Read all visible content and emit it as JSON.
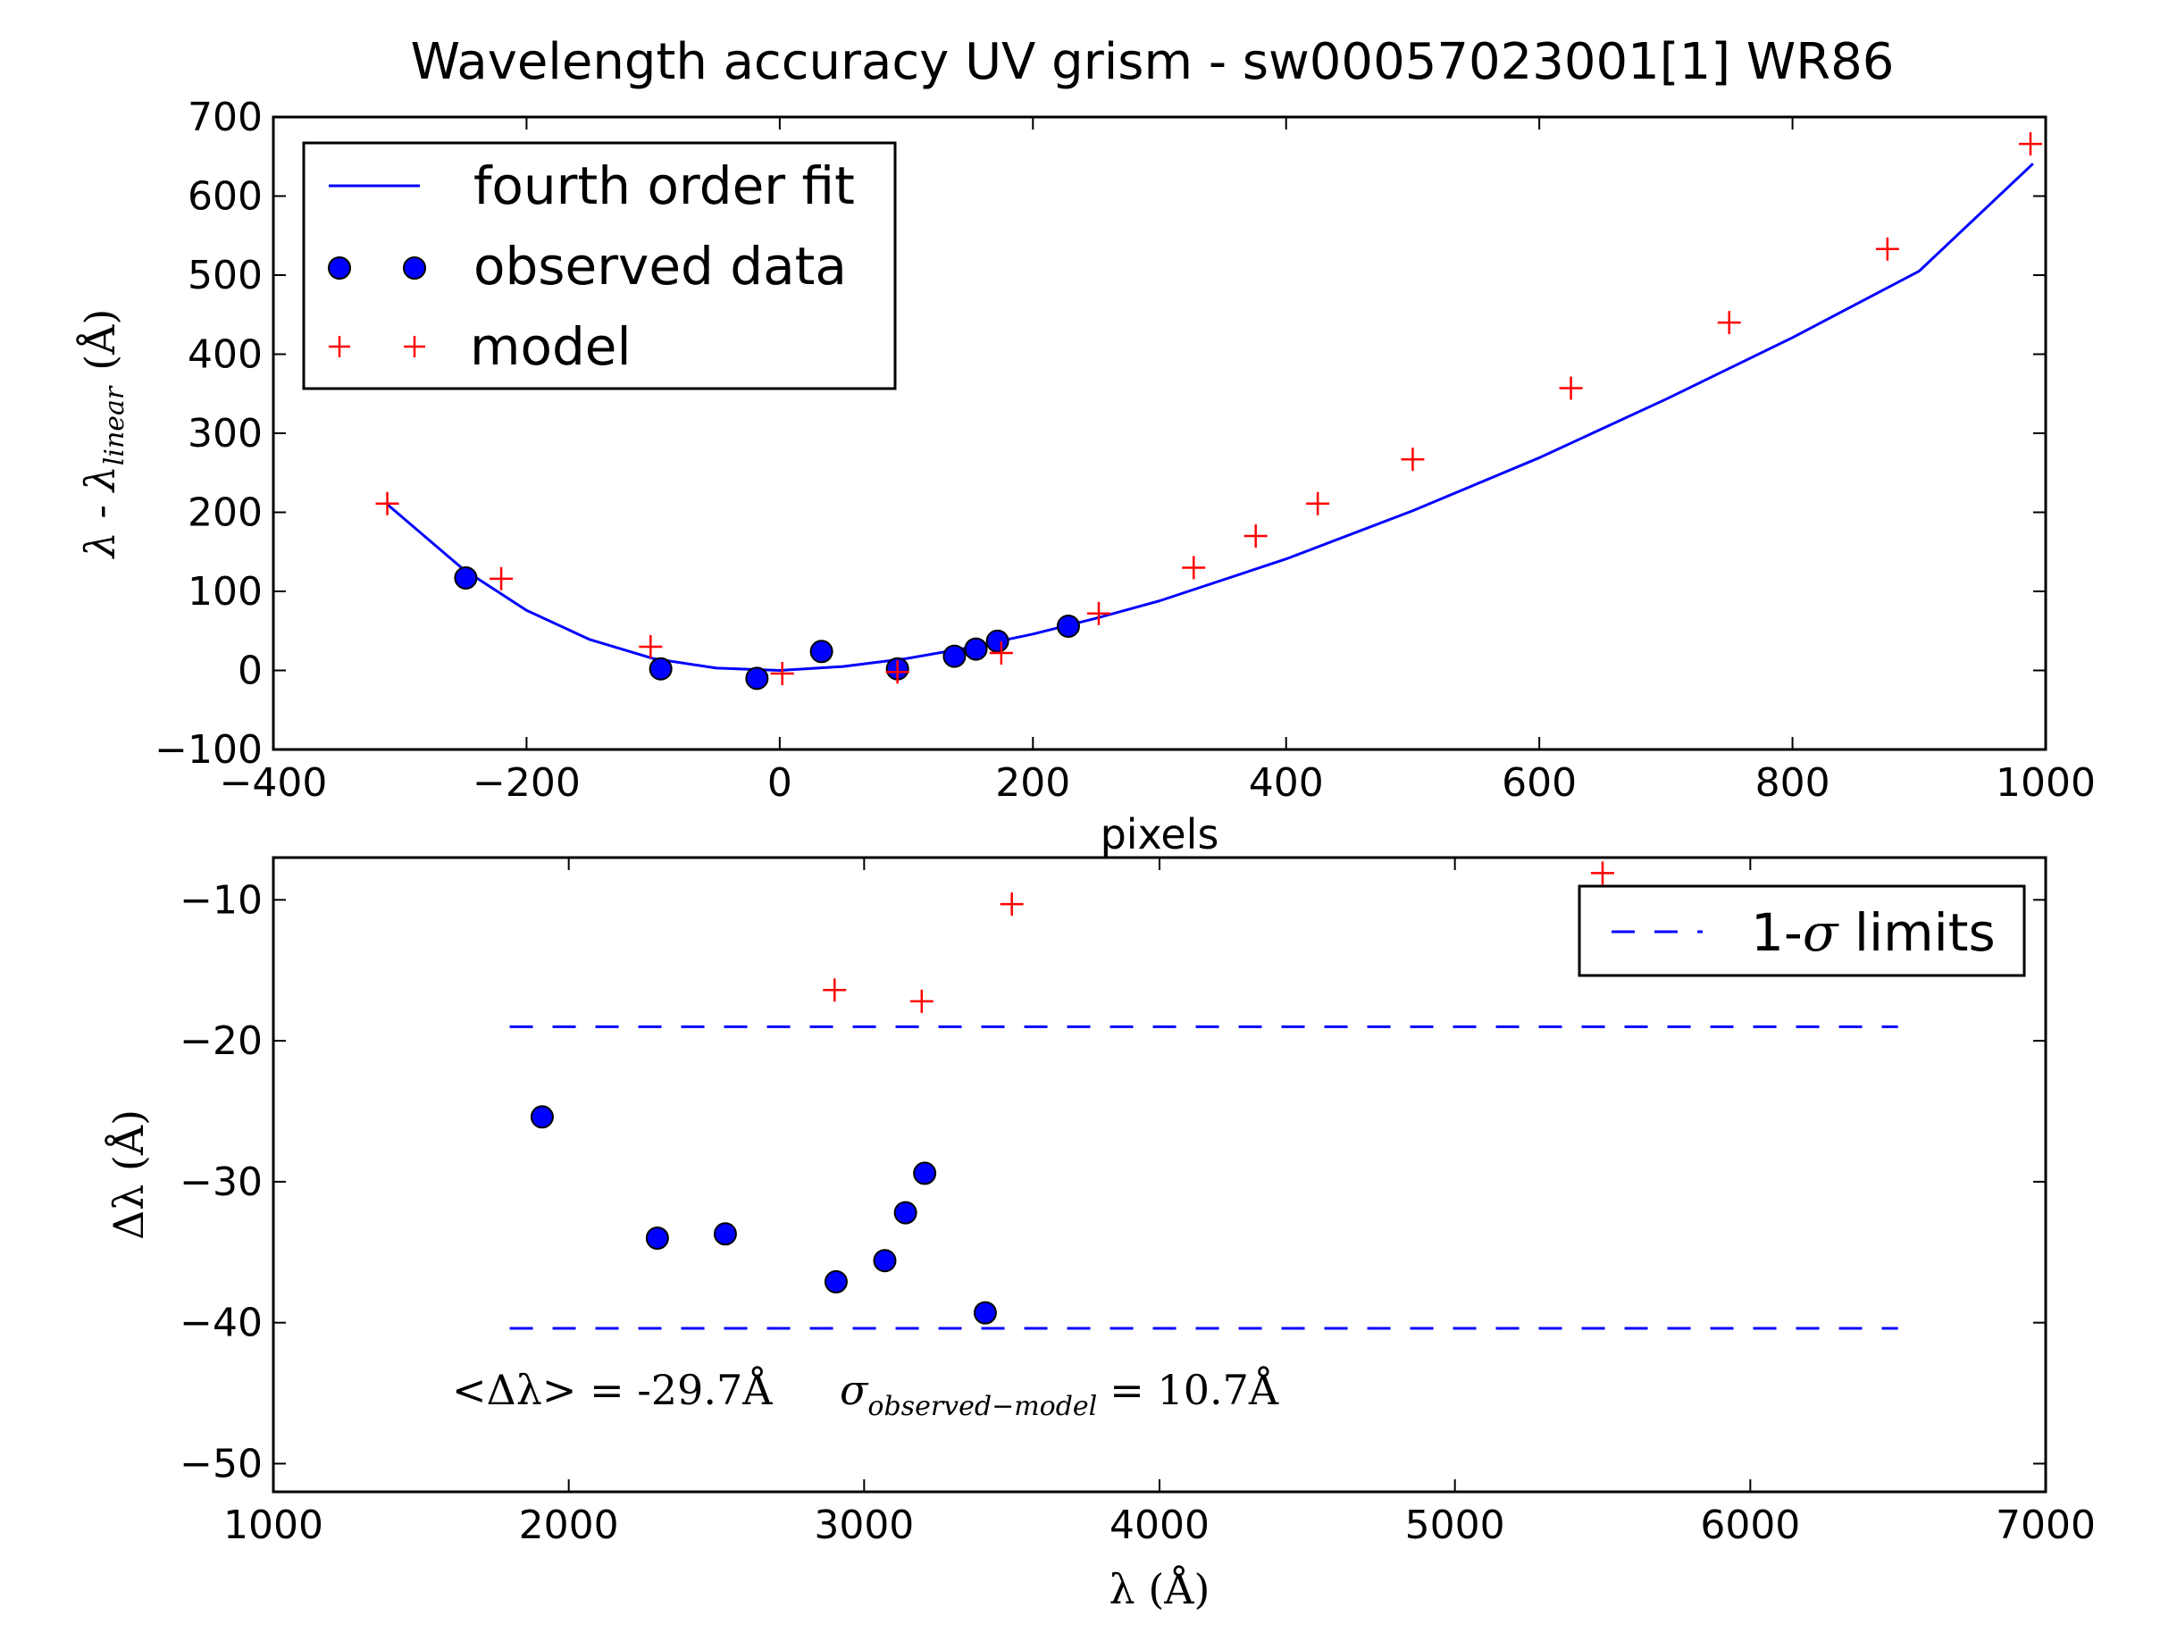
{
  "title": "Wavelength accuracy UV grism - sw00057023001[1] WR86",
  "colors": {
    "fit": "#0000ff",
    "observed": "#0000ff",
    "model": "#ff0000",
    "sigma": "#0000ff",
    "axes": "#000000"
  },
  "chart_data": [
    {
      "type": "scatter",
      "title": "Wavelength accuracy UV grism - sw00057023001[1] WR86",
      "xlabel": "pixels",
      "ylabel_main": "λ - λ",
      "ylabel_sub": "linear",
      "ylabel_unit": "(Å)",
      "xlim": [
        -400,
        1000
      ],
      "ylim": [
        -100,
        700
      ],
      "xticks": [
        -400,
        -200,
        0,
        200,
        400,
        600,
        800,
        1000
      ],
      "yticks": [
        -100,
        0,
        100,
        200,
        300,
        400,
        500,
        600,
        700
      ],
      "xtick_labels": [
        "−400",
        "−200",
        "0",
        "200",
        "400",
        "600",
        "800",
        "1000"
      ],
      "ytick_labels": [
        "−100",
        "0",
        "100",
        "200",
        "300",
        "400",
        "500",
        "600",
        "700"
      ],
      "legend_position": "upper left",
      "series": [
        {
          "name": "fourth order fit",
          "kind": "line",
          "x": [
            -310,
            -250,
            -200,
            -150,
            -100,
            -50,
            0,
            50,
            100,
            150,
            200,
            250,
            300,
            400,
            500,
            600,
            700,
            800,
            900,
            990
          ],
          "y": [
            210,
            128,
            76,
            39,
            15,
            3,
            0,
            5,
            15,
            29,
            46,
            66,
            88,
            141,
            202,
            269,
            343,
            421,
            505,
            641
          ]
        },
        {
          "name": "observed data",
          "kind": "circle",
          "x": [
            -248,
            -94,
            -18,
            33,
            93,
            138,
            155,
            172,
            228
          ],
          "y": [
            117,
            2,
            -10,
            24,
            2,
            18,
            27,
            37,
            56
          ]
        },
        {
          "name": "model",
          "kind": "plus",
          "x": [
            -310,
            -220,
            -102,
            2,
            93,
            175,
            252,
            327,
            376,
            425,
            500,
            625,
            750,
            875,
            988
          ],
          "y": [
            211,
            116,
            30,
            -4,
            -2,
            22,
            72,
            130,
            170,
            211,
            267,
            357,
            440,
            533,
            666
          ]
        }
      ]
    },
    {
      "type": "scatter",
      "xlabel": "λ (Å)",
      "ylabel": "Δλ (Å)",
      "xlim": [
        1000,
        7000
      ],
      "ylim": [
        -52,
        -7
      ],
      "xticks": [
        1000,
        2000,
        3000,
        4000,
        5000,
        6000,
        7000
      ],
      "yticks": [
        -50,
        -40,
        -30,
        -20,
        -10
      ],
      "xtick_labels": [
        "1000",
        "2000",
        "3000",
        "4000",
        "5000",
        "6000",
        "7000"
      ],
      "ytick_labels": [
        "−50",
        "−40",
        "−30",
        "−20",
        "−10"
      ],
      "legend_position": "upper right",
      "annotation_mean": "<Δλ> = -29.7Å",
      "annotation_sigma_symbol": "σ",
      "annotation_sigma_sub": "observed−model",
      "annotation_sigma_value": "= 10.7Å",
      "series": [
        {
          "name": "1-σ limits",
          "legend_prefix": "1-",
          "legend_symbol": "σ",
          "legend_suffix": " limits",
          "kind": "dashed-lines",
          "x": [
            1800,
            6500
          ],
          "levels": [
            -19.0,
            -40.4
          ]
        },
        {
          "kind": "circle",
          "x": [
            1910,
            2300,
            2530,
            2905,
            3070,
            3140,
            3205,
            3410
          ],
          "y": [
            -25.4,
            -34.0,
            -33.7,
            -37.1,
            -35.6,
            -32.2,
            -29.4,
            -39.3
          ]
        },
        {
          "kind": "plus",
          "x": [
            2900,
            3195,
            3500,
            5500
          ],
          "y": [
            -16.4,
            -17.2,
            -10.3,
            -8.1
          ]
        }
      ]
    }
  ]
}
